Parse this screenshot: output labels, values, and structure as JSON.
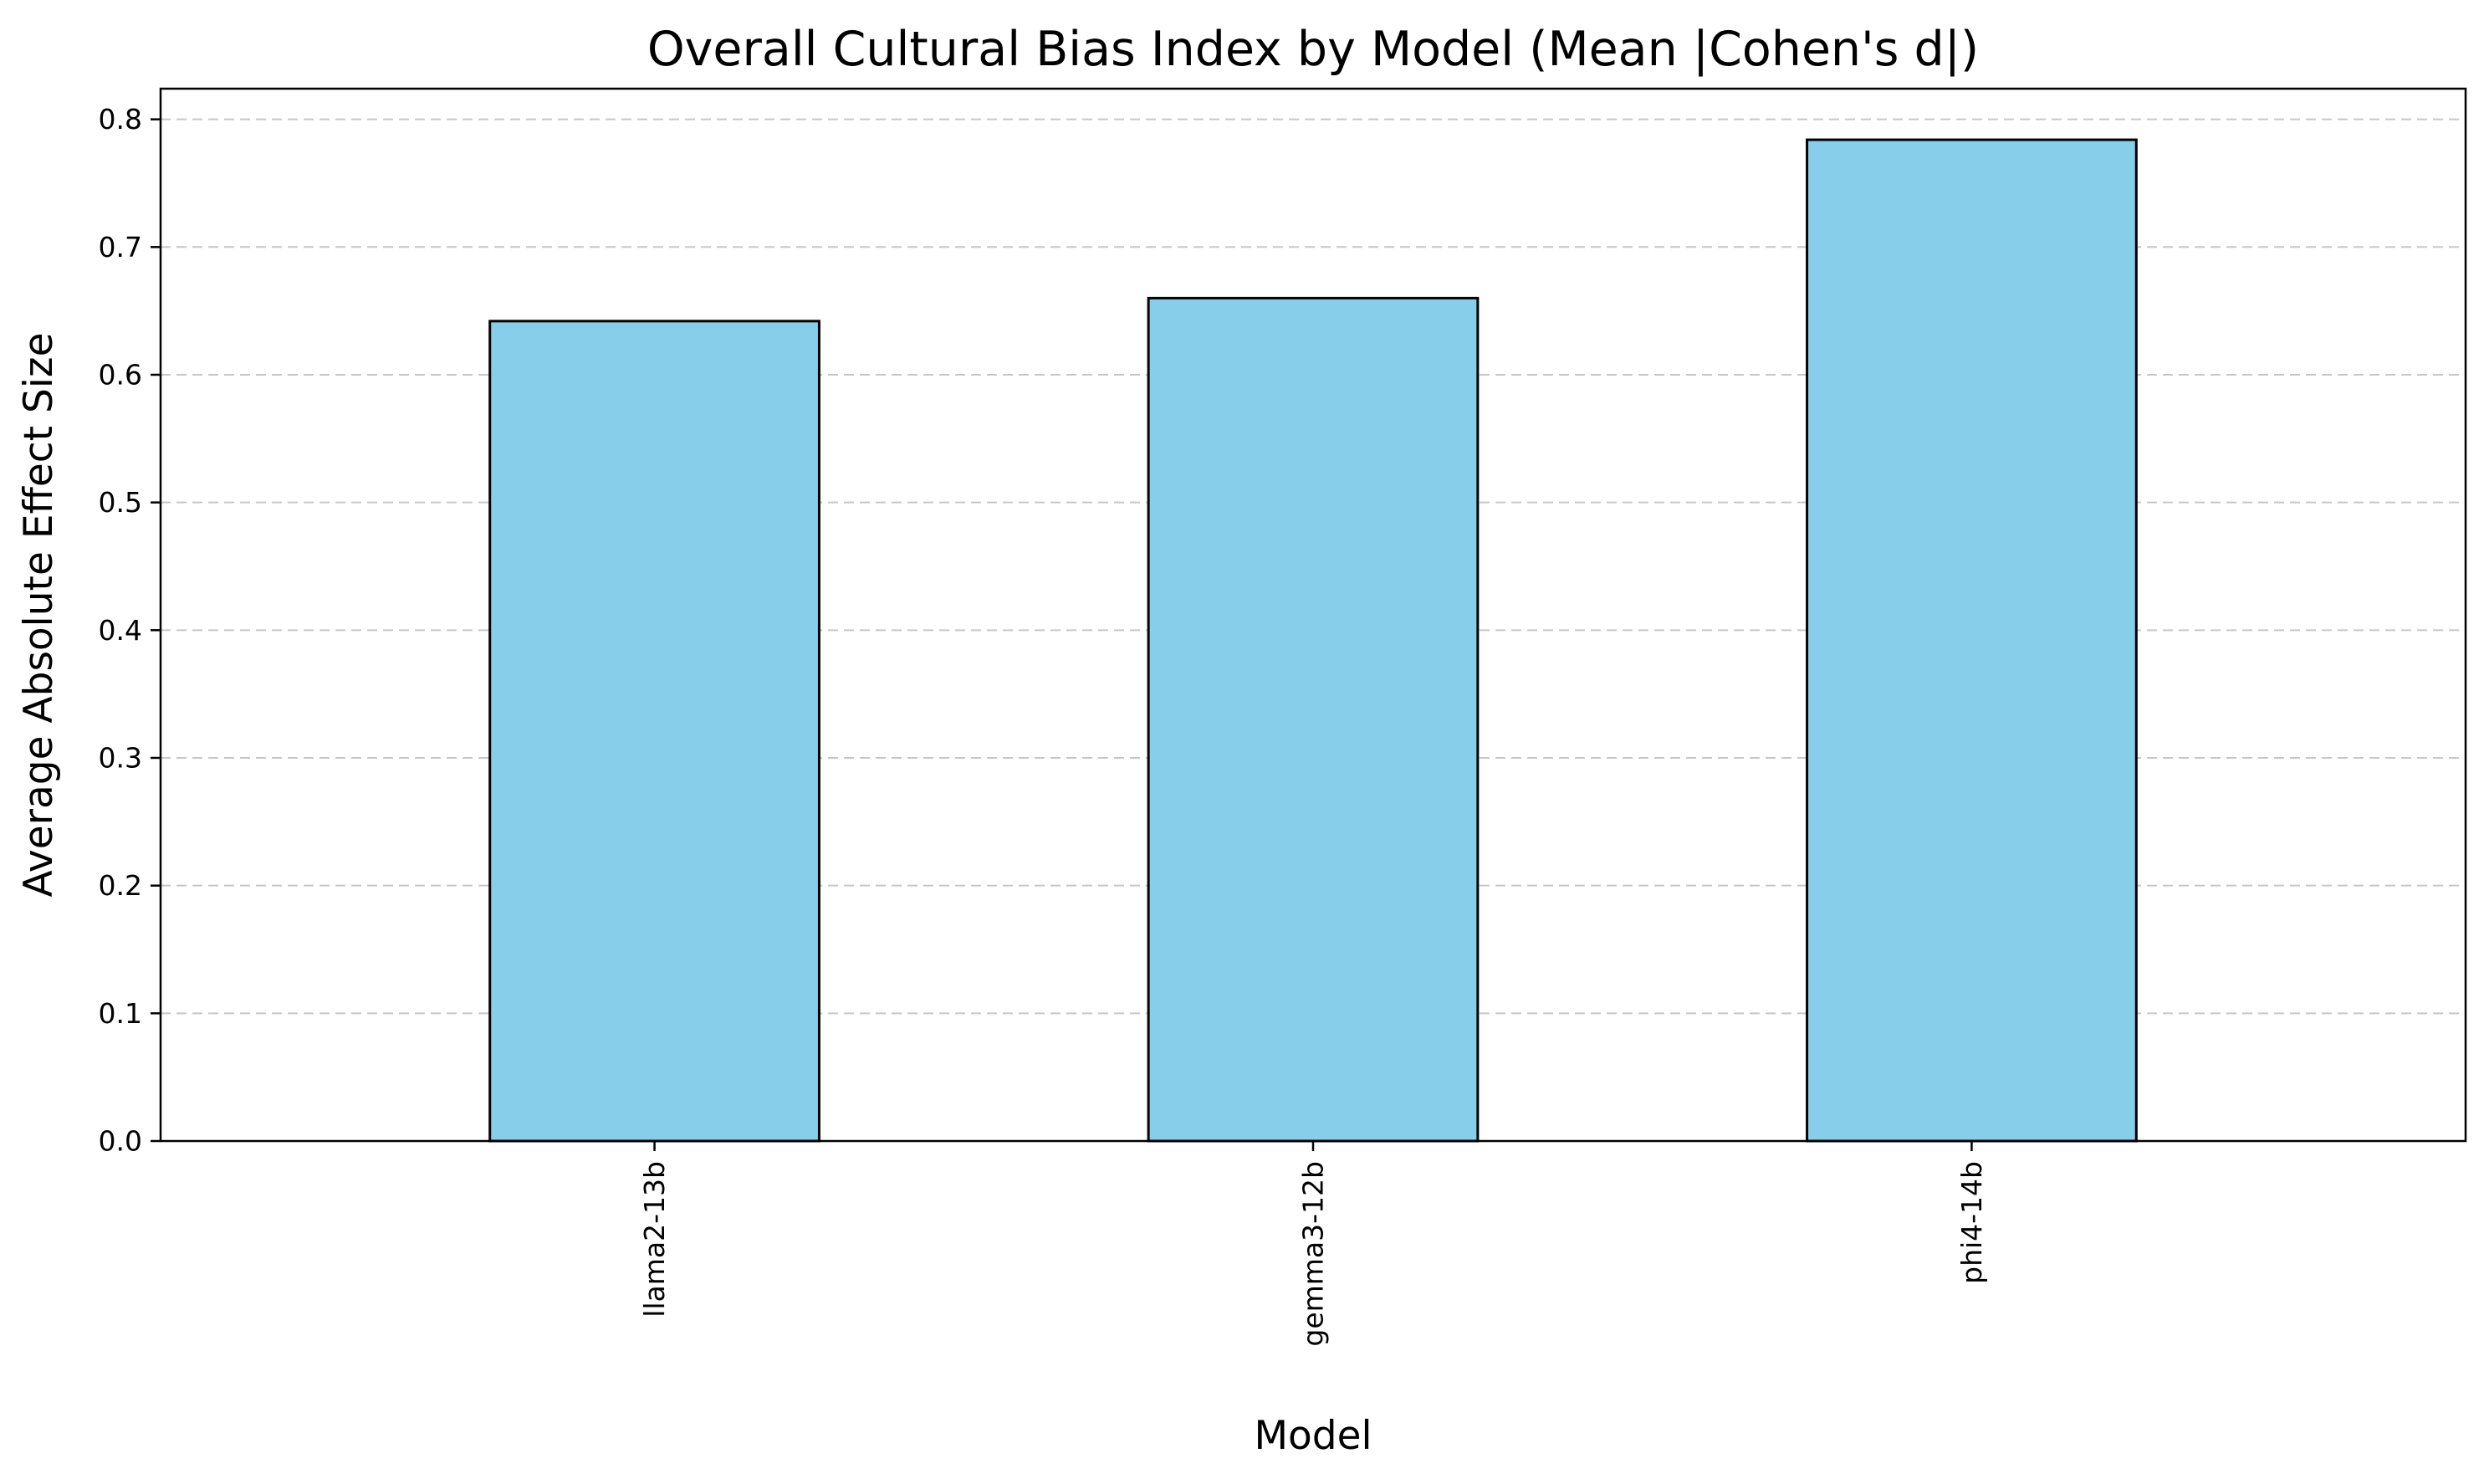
{
  "chart_data": {
    "type": "bar",
    "title": "Overall Cultural Bias Index by Model (Mean |Cohen's d|)",
    "xlabel": "Model",
    "ylabel": "Average Absolute Effect Size",
    "categories": [
      "llama2-13b",
      "gemma3-12b",
      "phi4-14b"
    ],
    "values": [
      0.642,
      0.66,
      0.784
    ],
    "ylim": [
      0,
      0.824
    ],
    "yticks": [
      0.0,
      0.1,
      0.2,
      0.3,
      0.4,
      0.5,
      0.6,
      0.7,
      0.8
    ],
    "ytick_labels": [
      "0.0",
      "0.1",
      "0.2",
      "0.3",
      "0.4",
      "0.5",
      "0.6",
      "0.7",
      "0.8"
    ],
    "grid": "y-dashed",
    "bar_color": "#87CEEB",
    "edge_color": "#000000",
    "xtick_rotation": "vertical"
  }
}
